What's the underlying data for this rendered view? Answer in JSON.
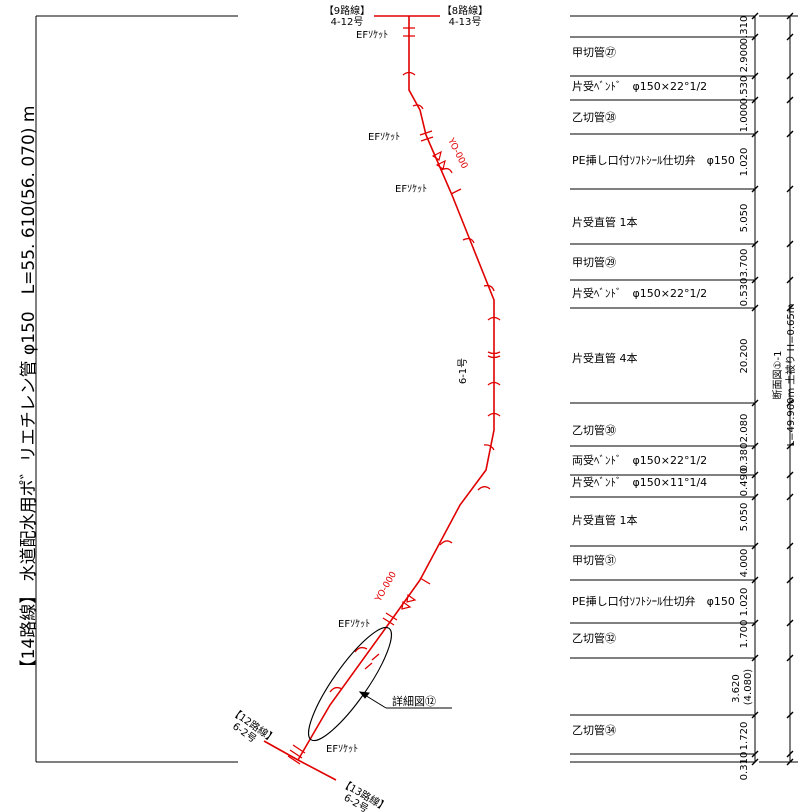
{
  "title": "【14路線】 水道配水用ポ゛リエチレン管 φ150　L=55. 610(56. 070) m",
  "route": {
    "top_left_route": "【9路線】",
    "top_left_no": "4-12号",
    "top_right_route": "【8路線】",
    "top_right_no": "4-13号",
    "mid_label": "6-1号",
    "bottom_left_route": "【12路線】",
    "bottom_left_no": "6-2号",
    "bottom_right_route": "【13路線】",
    "bottom_right_no": "6-2号",
    "yo_upper": "YO-000",
    "yo_lower": "YO-000"
  },
  "ef_labels": [
    "EFｿｹｯﾄ",
    "EFｿｹｯﾄ",
    "EFｿｹｯﾄ",
    "EFｿｹｯﾄ",
    "EFｿｹｯﾄ"
  ],
  "detail_label": "詳細図⑫",
  "pipe_items": [
    "甲切管㉗",
    "片受ﾍﾞﾝﾄﾞ　φ150×22°1/2",
    "乙切管㉘",
    "PE挿し口付ｿﾌﾄｼｰﾙ仕切弁　φ150",
    "片受直管 1本",
    "甲切管㉙",
    "片受ﾍﾞﾝﾄﾞ　φ150×22°1/2",
    "片受直管 4本",
    "乙切管㉚",
    "両受ﾍﾞﾝﾄﾞ　φ150×22°1/2",
    "片受ﾍﾞﾝﾄﾞ　φ150×11°1/4",
    "片受直管 1本",
    "甲切管㉛",
    "PE挿し口付ｿﾌﾄｼｰﾙ仕切弁　φ150",
    "乙切管㉜",
    "乙切管㉞"
  ],
  "dimensions": [
    "0.310",
    "2.900",
    "0.530",
    "1.000",
    "1.020",
    "5.050",
    "3.700",
    "0.530",
    "20.200",
    "2.080",
    "0.380",
    "0.490",
    "5.050",
    "4.000",
    "1.020",
    "1.700",
    "3.620\n(4.080)",
    "1.720",
    "0.310"
  ],
  "section": {
    "line1": "断面図①-1",
    "line2": "L=49.960m 土被り H=0.65m"
  }
}
